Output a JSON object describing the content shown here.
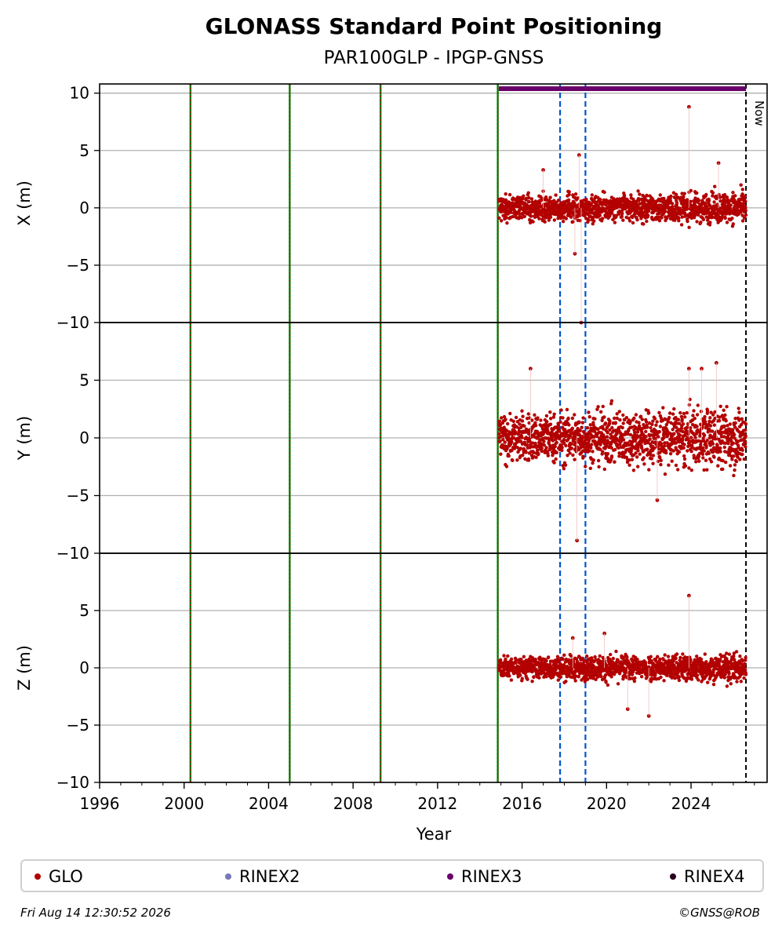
{
  "chart_data": {
    "type": "scatter",
    "title": "GLONASS Standard Point Positioning",
    "subtitle": "PAR100GLP - IPGP-GNSS",
    "xlabel": "Year",
    "xlim": [
      1996,
      2027.6
    ],
    "xticks": [
      1996,
      2000,
      2004,
      2008,
      2012,
      2016,
      2020,
      2024
    ],
    "xtick_labels": [
      "1996",
      "2000",
      "2004",
      "2008",
      "2012",
      "2016",
      "2020",
      "2024"
    ],
    "panels": [
      {
        "id": "x",
        "ylabel": "X (m)",
        "ylim": [
          -10,
          10.8
        ],
        "yticks": [
          -10,
          -5,
          0,
          5,
          10
        ],
        "ytick_labels": [
          "−10",
          "−5",
          "0",
          "5",
          "10"
        ],
        "data_start": 2014.9,
        "data_end": 2026.6,
        "center": 0.0,
        "spread": 0.7,
        "outliers": [
          [
            2023.9,
            8.8
          ],
          [
            2018.7,
            4.6
          ],
          [
            2018.5,
            -4.0
          ],
          [
            2017.0,
            3.3
          ],
          [
            2025.3,
            3.9
          ],
          [
            2018.8,
            -10.0
          ]
        ]
      },
      {
        "id": "y",
        "ylabel": "Y (m)",
        "ylim": [
          -10,
          10
        ],
        "yticks": [
          -10,
          -5,
          0,
          5
        ],
        "ytick_labels": [
          "−10",
          "−5",
          "0",
          "5"
        ],
        "data_start": 2014.9,
        "data_end": 2026.6,
        "center": 0.0,
        "spread": 1.4,
        "outliers": [
          [
            2016.4,
            6.0
          ],
          [
            2023.9,
            6.0
          ],
          [
            2025.2,
            6.5
          ],
          [
            2018.6,
            -8.9
          ],
          [
            2022.4,
            -5.4
          ],
          [
            2024.5,
            6.0
          ]
        ]
      },
      {
        "id": "z",
        "ylabel": "Z (m)",
        "ylim": [
          -10,
          10
        ],
        "yticks": [
          -10,
          -5,
          0,
          5
        ],
        "ytick_labels": [
          "−10",
          "−5",
          "0",
          "5"
        ],
        "data_start": 2014.9,
        "data_end": 2026.6,
        "center": 0.0,
        "spread": 0.65,
        "outliers": [
          [
            2023.9,
            6.3
          ],
          [
            2022.0,
            -4.2
          ],
          [
            2021.0,
            -3.6
          ],
          [
            2019.9,
            3.0
          ],
          [
            2018.4,
            2.6
          ]
        ]
      }
    ],
    "event_lines": {
      "green_red": [
        2000.3,
        2005.0,
        2009.3,
        2014.85
      ],
      "blue_dashed": [
        2017.8,
        2019.0
      ],
      "now": 2026.6
    },
    "now_label": "Now",
    "rinex3_bar": {
      "start": 2014.9,
      "end": 2026.6
    },
    "colors": {
      "glo": "#b30000",
      "rinex2": "#7777bb",
      "rinex3": "#6a006a",
      "rinex4": "#2a0020",
      "event_green": "#008000",
      "event_red": "#cc0000",
      "event_blue": "#0055cc",
      "grid": "#b0b0b0"
    },
    "grid": true,
    "legend": {
      "placement": "bottom",
      "items": [
        {
          "label": "GLO",
          "color": "#b30000"
        },
        {
          "label": "RINEX2",
          "color": "#7777bb"
        },
        {
          "label": "RINEX3",
          "color": "#6a006a"
        },
        {
          "label": "RINEX4",
          "color": "#2a0020"
        }
      ]
    }
  },
  "footer": {
    "timestamp": "Fri Aug 14 12:30:52 2026",
    "credit": "©GNSS@ROB"
  }
}
